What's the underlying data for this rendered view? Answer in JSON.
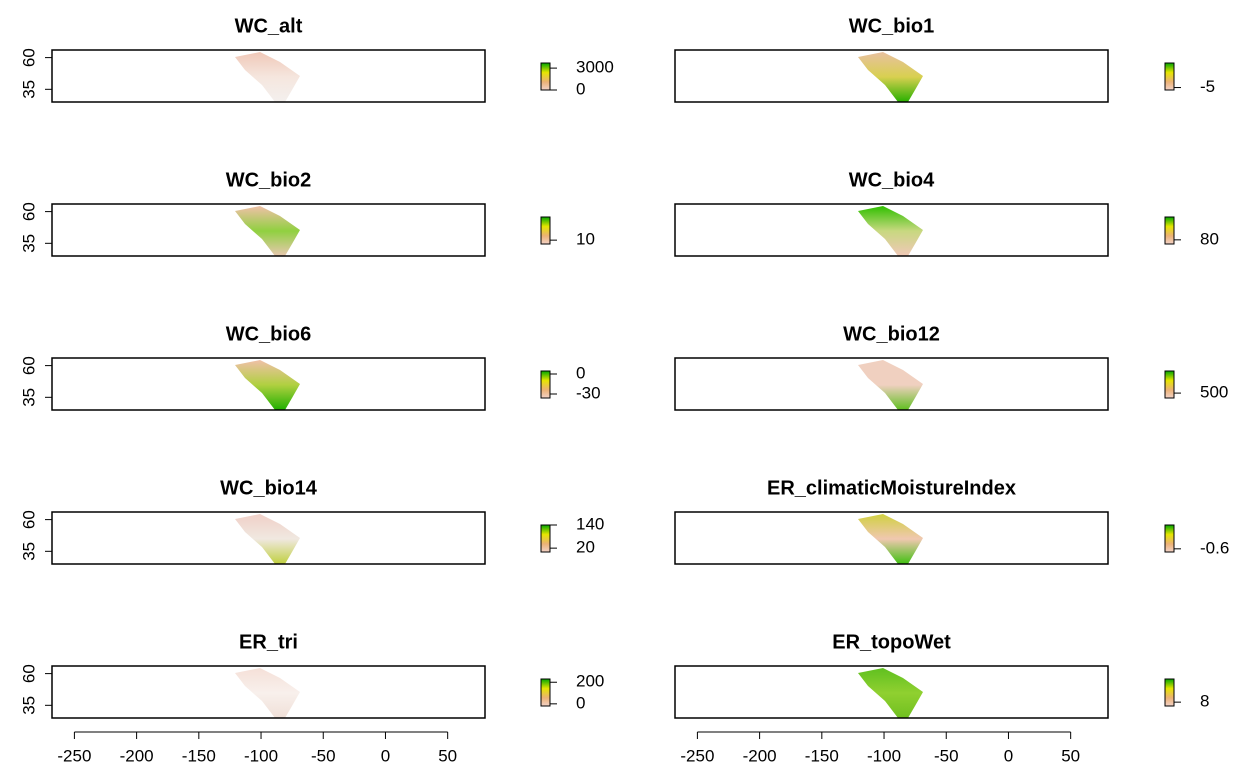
{
  "chart_data": [
    {
      "type": "raster",
      "title": "WC_alt",
      "xlim": [
        -268,
        80
      ],
      "ylim": [
        25,
        66
      ],
      "yticks": [
        35,
        60
      ],
      "zlim": [
        0,
        3700
      ],
      "legend_ticks": [
        3000,
        0
      ],
      "colors": [
        "#f0c8b8",
        "#f5e6de",
        "#f4f0ee"
      ]
    },
    {
      "type": "raster",
      "title": "WC_bio1",
      "xlim": [
        -268,
        80
      ],
      "ylim": [
        25,
        66
      ],
      "zlim": [
        -8,
        25
      ],
      "legend_ticks": [
        -5
      ],
      "colors": [
        "#e8c0a0",
        "#d8d050",
        "#28b000"
      ]
    },
    {
      "type": "raster",
      "title": "WC_bio2",
      "xlim": [
        -268,
        80
      ],
      "ylim": [
        25,
        66
      ],
      "yticks": [
        35,
        60
      ],
      "zlim": [
        8,
        22
      ],
      "legend_ticks": [
        10
      ],
      "colors": [
        "#f0c0a8",
        "#90d040",
        "#e8c8b0"
      ]
    },
    {
      "type": "raster",
      "title": "WC_bio4",
      "xlim": [
        -268,
        80
      ],
      "ylim": [
        25,
        66
      ],
      "zlim": [
        70,
        135
      ],
      "legend_ticks": [
        80
      ],
      "colors": [
        "#30c000",
        "#c8d880",
        "#f0c8b8"
      ]
    },
    {
      "type": "raster",
      "title": "WC_bio6",
      "xlim": [
        -268,
        80
      ],
      "ylim": [
        25,
        66
      ],
      "yticks": [
        35,
        60
      ],
      "zlim": [
        -36,
        4.5
      ],
      "legend_ticks": [
        0,
        -30
      ],
      "colors": [
        "#f0c0a8",
        "#b0d040",
        "#20b000"
      ]
    },
    {
      "type": "raster",
      "title": "WC_bio12",
      "xlim": [
        -268,
        80
      ],
      "ylim": [
        25,
        66
      ],
      "zlim": [
        300,
        1400
      ],
      "legend_ticks": [
        500
      ],
      "colors": [
        "#f0d0c0",
        "#f0d0c0",
        "#60c020"
      ]
    },
    {
      "type": "raster",
      "title": "WC_bio14",
      "xlim": [
        -268,
        80
      ],
      "ylim": [
        25,
        66
      ],
      "yticks": [
        35,
        60
      ],
      "zlim": [
        0,
        140
      ],
      "legend_ticks": [
        140,
        20
      ],
      "colors": [
        "#f0d0c8",
        "#f0e8e0",
        "#c0d040"
      ]
    },
    {
      "type": "raster",
      "title": "ER_climaticMoistureIndex",
      "xlim": [
        -268,
        80
      ],
      "ylim": [
        25,
        66
      ],
      "zlim": [
        -0.8,
        0.9
      ],
      "legend_ticks": [
        -0.6
      ],
      "colors": [
        "#d0d040",
        "#f0c8b0",
        "#40c010"
      ]
    },
    {
      "type": "raster",
      "title": "ER_tri",
      "xlim": [
        -268,
        80
      ],
      "ylim": [
        25,
        66
      ],
      "yticks": [
        35,
        60
      ],
      "xticks": [
        -250,
        -200,
        -150,
        -100,
        -50,
        0,
        50
      ],
      "zlim": [
        -20,
        230
      ],
      "legend_ticks": [
        200,
        0
      ],
      "colors": [
        "#f5e0d8",
        "#f8f0ec",
        "#f0e0d8"
      ]
    },
    {
      "type": "raster",
      "title": "ER_topoWet",
      "xlim": [
        -268,
        80
      ],
      "ylim": [
        25,
        66
      ],
      "xticks": [
        -250,
        -200,
        -150,
        -100,
        -50,
        0,
        50
      ],
      "zlim": [
        6,
        20
      ],
      "legend_ticks": [
        8
      ],
      "colors": [
        "#60c020",
        "#90d030",
        "#70c020"
      ]
    }
  ]
}
